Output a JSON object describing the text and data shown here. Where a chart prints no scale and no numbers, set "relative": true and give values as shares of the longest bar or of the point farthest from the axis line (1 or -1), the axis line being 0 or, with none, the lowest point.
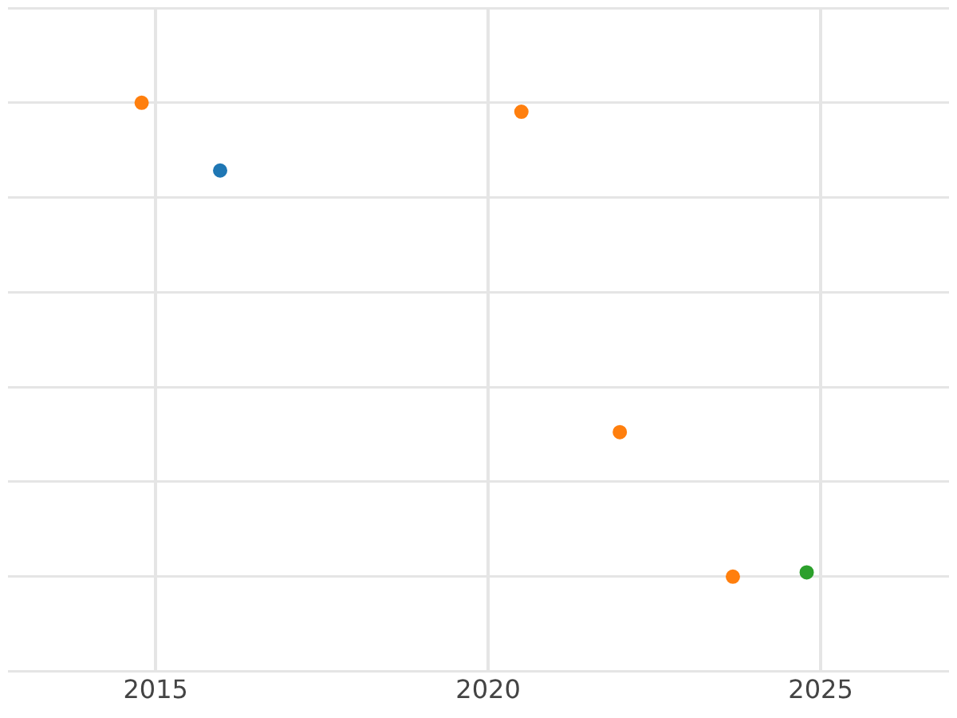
{
  "chart_data": {
    "type": "scatter",
    "relative": true,
    "xlim": [
      2012.78,
      2026.93
    ],
    "xticks": [
      2015,
      2020,
      2025
    ],
    "grid": true,
    "legend": false,
    "marker": "circle",
    "series": [
      {
        "color": "#1f77b4",
        "x": [
          2015.97
        ],
        "values": [
          0.857
        ]
      },
      {
        "color": "#ff7f0e",
        "x": [
          2014.79,
          2020.5,
          2021.98,
          2023.68
        ],
        "values": [
          1,
          0.981,
          0.305,
          0
        ]
      },
      {
        "color": "#2ca02c",
        "x": [
          2024.79
        ],
        "values": [
          0.009
        ]
      }
    ]
  }
}
